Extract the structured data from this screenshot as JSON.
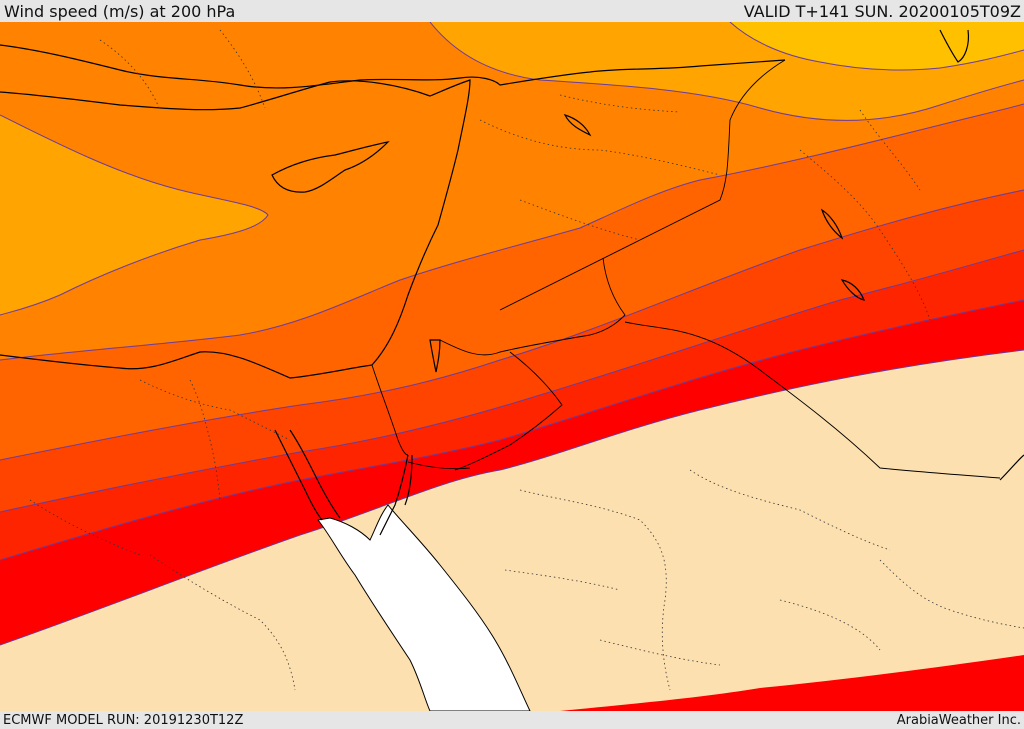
{
  "header": {
    "title": "Wind speed (m/s) at 200 hPa",
    "valid": "VALID T+141 SUN. 20200105T09Z"
  },
  "footer": {
    "model_run": "ECMWF MODEL RUN: 20191230T12Z",
    "credit": "ArabiaWeather Inc."
  },
  "map": {
    "colors": {
      "calm": "#fde0b0",
      "band_1": "#ffc000",
      "band_2": "#ffa400",
      "band_3": "#ff8200",
      "band_4": "#ff6400",
      "band_5": "#ff4400",
      "band_6": "#ff2400",
      "band_7": "#ff0000",
      "sea": "#ffffff",
      "contour": "#6a3c9a",
      "coast": "#000000"
    }
  }
}
